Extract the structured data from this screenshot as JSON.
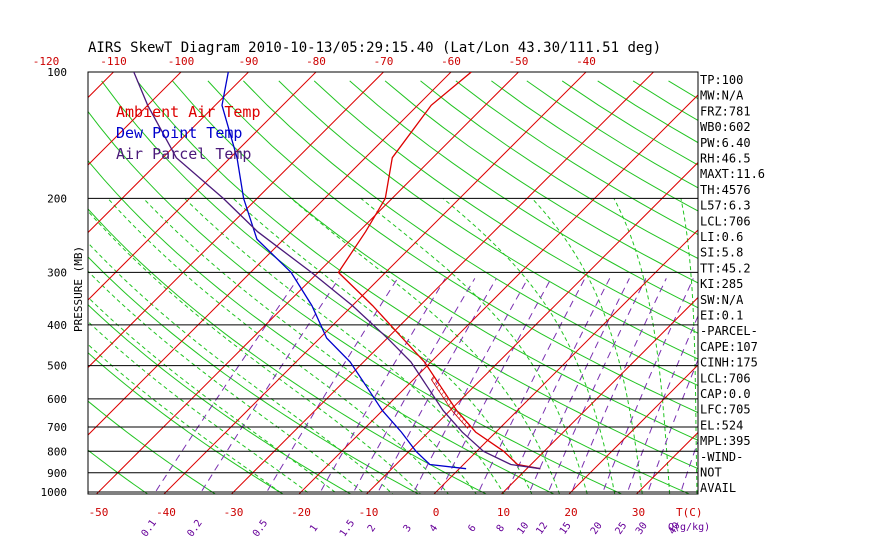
{
  "chart_data": {
    "type": "skewt",
    "title": "AIRS SkewT Diagram 2010-10-13/05:29:15.40 (Lat/Lon 43.30/111.51 deg)",
    "ylabel": "PRESSURE (MB)",
    "y_scale": "log",
    "ylim": [
      1000,
      100
    ],
    "pressure_ticks": [
      "100",
      "200",
      "300",
      "400",
      "500",
      "600",
      "700",
      "800",
      "900",
      "1000"
    ],
    "top_temp_ticks": [
      "-120",
      "-110",
      "-100",
      "-90",
      "-80",
      "-70",
      "-60",
      "-50",
      "-40"
    ],
    "bottom_temp_ticks": [
      "-50",
      "-40",
      "-30",
      "-20",
      "-10",
      "0",
      "10",
      "20",
      "30"
    ],
    "bottom_temp_unit": "T(C)",
    "mixing_ratio_labels": [
      "0.1",
      "0.2",
      "0.5",
      "1",
      "1.5",
      "2",
      "3",
      "4",
      "6",
      "8",
      "10",
      "12",
      "15",
      "20",
      "25",
      "30",
      "40"
    ],
    "mixing_ratio_unit": "Q(g/kg)",
    "legend": [
      {
        "label": "Ambient Air Temp",
        "color": "#dd0000"
      },
      {
        "label": "Dew Point Temp",
        "color": "#0000cc"
      },
      {
        "label": "Air Parcel Temp",
        "color": "#4b1a7a"
      }
    ],
    "series": [
      {
        "name": "Ambient Air Temp",
        "color": "#dd0000",
        "pressure": [
          880,
          860,
          800,
          720,
          640,
          560,
          490,
          420,
          360,
          300,
          240,
          200,
          160,
          120,
          100
        ],
        "values": [
          12,
          8,
          4,
          -3,
          -9,
          -15,
          -21,
          -29,
          -37,
          -47,
          -49,
          -51,
          -56,
          -58,
          -57
        ]
      },
      {
        "name": "Dew Point Temp",
        "color": "#0000cc",
        "pressure": [
          880,
          860,
          800,
          720,
          640,
          560,
          490,
          430,
          360,
          300,
          250,
          200,
          160,
          120,
          100
        ],
        "values": [
          1,
          -5,
          -9,
          -14,
          -20,
          -26,
          -32,
          -39,
          -46,
          -54,
          -64,
          -72,
          -79,
          -89,
          -93
        ]
      },
      {
        "name": "Air Parcel Temp",
        "color": "#4b1a7a",
        "pressure": [
          880,
          860,
          800,
          720,
          640,
          560,
          490,
          430,
          360,
          300,
          240,
          200,
          160,
          120,
          100
        ],
        "values": [
          12,
          7,
          1,
          -5,
          -11,
          -17,
          -23,
          -30,
          -40,
          -51,
          -65,
          -75,
          -88,
          -100,
          -107
        ]
      }
    ],
    "indices": [
      "TP:100",
      "MW:N/A",
      "FRZ:781",
      "WB0:602",
      "PW:6.40",
      "RH:46.5",
      "MAXT:11.6",
      "TH:4576",
      "L57:6.3",
      "LCL:706",
      "LI:0.6",
      "SI:5.8",
      "TT:45.2",
      "KI:285",
      "SW:N/A",
      "EI:0.1",
      "-PARCEL-",
      "CAPE:107",
      "CINH:175",
      "LCL:706",
      "CAP:0.0",
      "LFC:705",
      "EL:524",
      "MPL:395",
      "-WIND-",
      "NOT",
      "AVAIL"
    ]
  }
}
